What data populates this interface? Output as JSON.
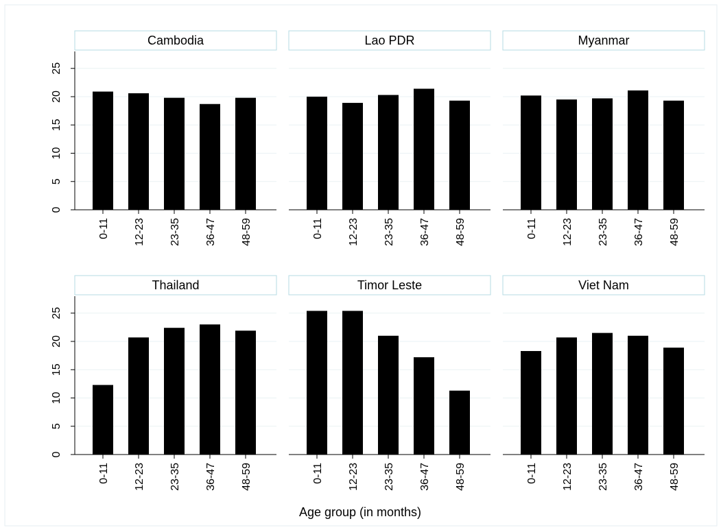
{
  "chart_data": {
    "type": "bar",
    "xlabel": "Age group (in months)",
    "ylabel": "",
    "ylim": [
      0,
      28
    ],
    "yticks": [
      0,
      5,
      10,
      15,
      20,
      25
    ],
    "grid": true,
    "categories": [
      "0-11",
      "12-23",
      "23-35",
      "36-47",
      "48-59"
    ],
    "bar_color": "#000000",
    "header_border_color": "#b5dbe3",
    "panels": [
      {
        "title": "Cambodia",
        "values": [
          20.9,
          20.6,
          19.8,
          18.7,
          19.8
        ]
      },
      {
        "title": "Lao PDR",
        "values": [
          20.0,
          18.9,
          20.3,
          21.4,
          19.3
        ]
      },
      {
        "title": "Myanmar",
        "values": [
          20.2,
          19.5,
          19.7,
          21.1,
          19.3
        ]
      },
      {
        "title": "Thailand",
        "values": [
          12.3,
          20.7,
          22.4,
          23.0,
          21.9
        ]
      },
      {
        "title": "Timor Leste",
        "values": [
          25.4,
          25.4,
          21.0,
          17.2,
          11.3
        ]
      },
      {
        "title": "Viet Nam",
        "values": [
          18.3,
          20.7,
          21.5,
          21.0,
          18.9
        ]
      }
    ]
  }
}
